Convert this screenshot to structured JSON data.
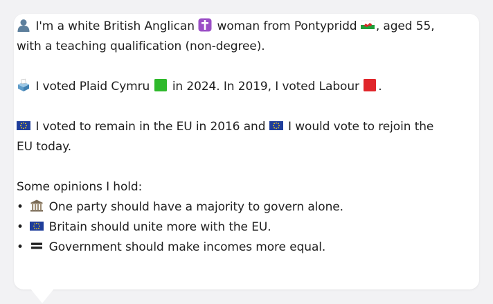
{
  "persona": {
    "line1_a": "I'm a white British Anglican",
    "line1_b": "woman from Pontypridd",
    "line1_c": ", aged 55, with a teaching qualification (non-degree).",
    "vote_a": "I voted Plaid Cymru",
    "vote_b": "in 2024. In 2019, I voted Labour",
    "vote_c": ".",
    "eu_a": "I voted to remain in the EU in 2016 and",
    "eu_b": "I would vote to rejoin the EU today.",
    "opinions_heading": "Some opinions I hold:",
    "bullet_char": "•",
    "opinions": [
      "One party should have a majority to govern alone.",
      "Britain should unite more with the EU.",
      "Government should make incomes more equal."
    ]
  },
  "icons": {
    "person": "person-silhouette-icon",
    "cross": "latin-cross-icon",
    "flag_wales": "wales-flag-icon",
    "ballot": "ballot-box-icon",
    "green_square": "green-square-icon",
    "red_square": "red-square-icon",
    "eu_flag": "eu-flag-icon",
    "classical_building": "classical-building-icon",
    "equals": "heavy-equals-icon"
  },
  "colors": {
    "plaid_green": "#2fb92c",
    "labour_red": "#e0262b",
    "cross_purple": "#9b4fc6",
    "eu_blue": "#1f3e9b"
  }
}
